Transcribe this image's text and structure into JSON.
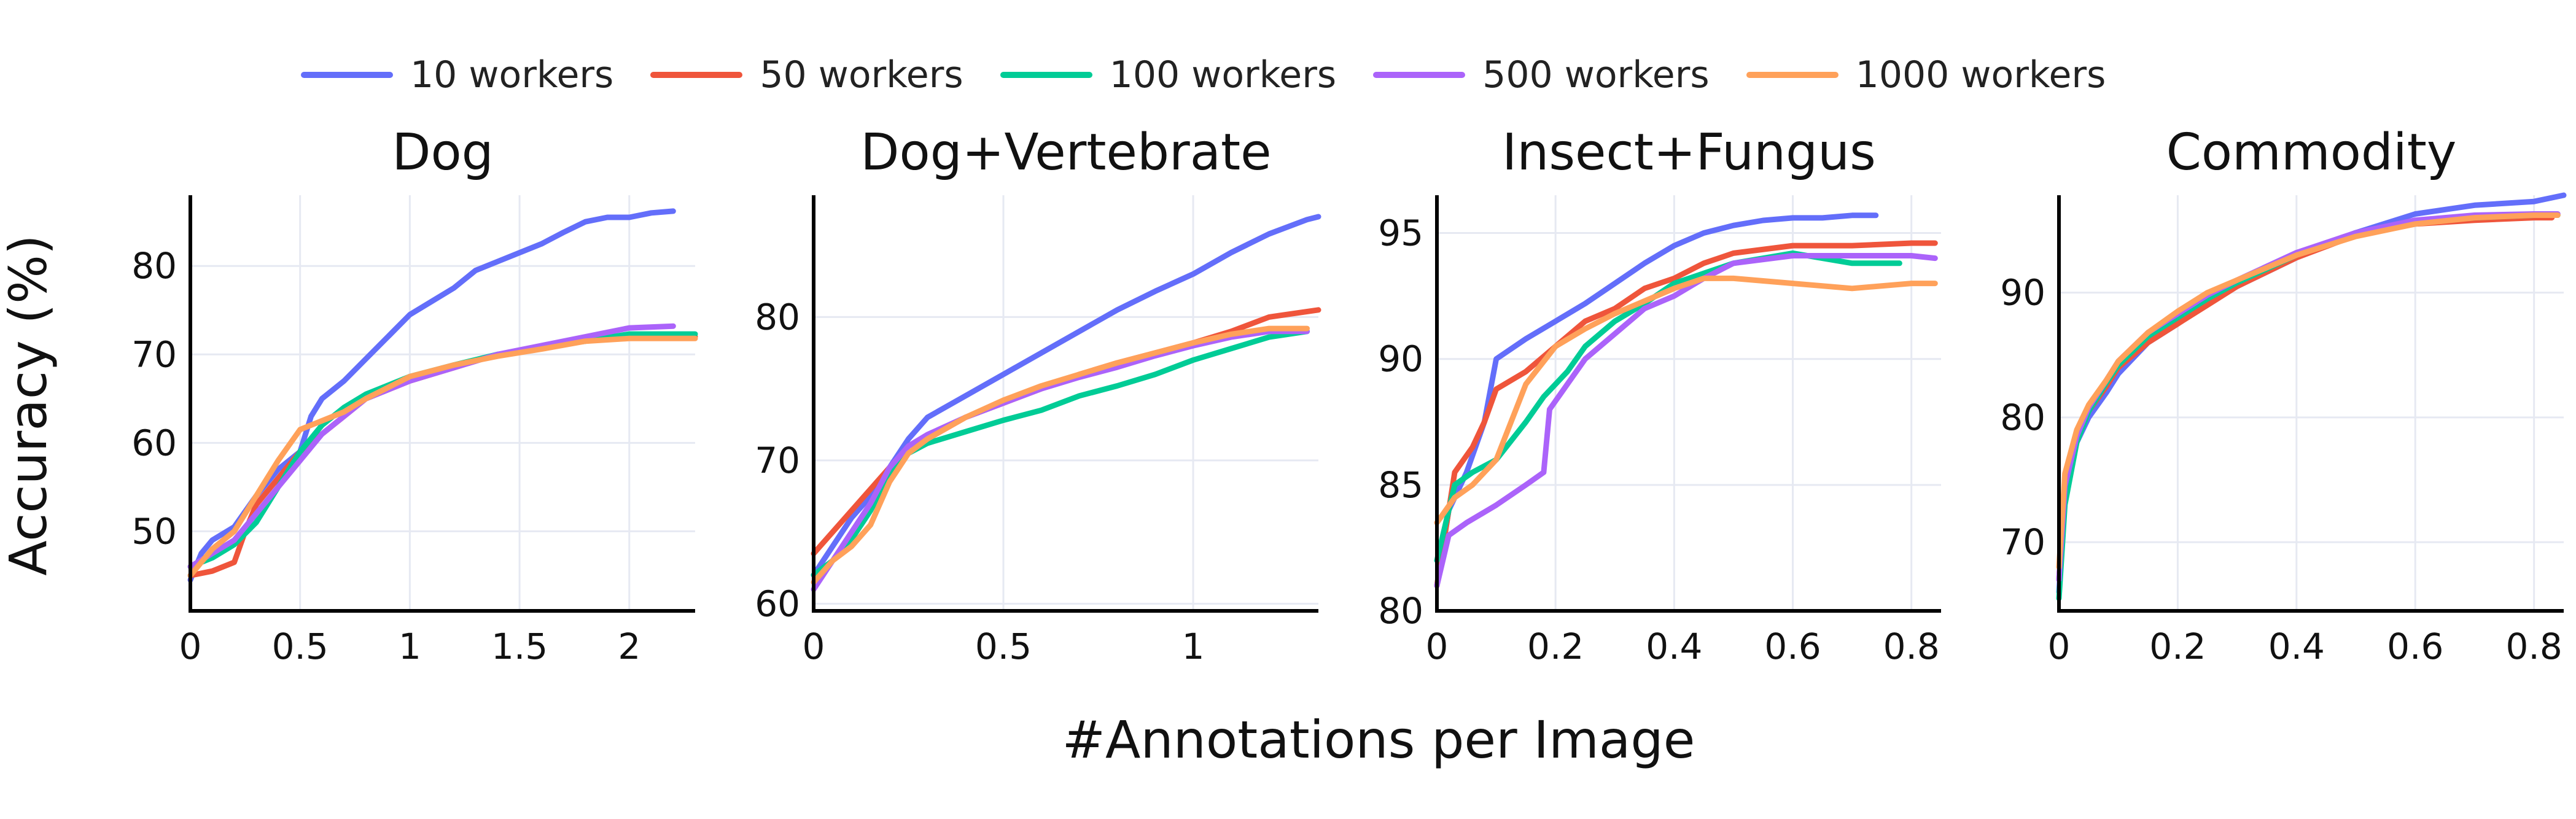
{
  "ylabel": "Accuracy (%)",
  "xlabel": "#Annotations per Image",
  "legend": [
    {
      "name": "10 workers",
      "color": "#636efa"
    },
    {
      "name": "50 workers",
      "color": "#ef553b"
    },
    {
      "name": "100 workers",
      "color": "#00cc96"
    },
    {
      "name": "500 workers",
      "color": "#ab63fa"
    },
    {
      "name": "1000 workers",
      "color": "#ffa15a"
    }
  ],
  "chart_data": [
    {
      "type": "line",
      "title": "Dog",
      "xlim": [
        0,
        2.3
      ],
      "ylim": [
        41,
        88
      ],
      "xticks": [
        0,
        0.5,
        1,
        1.5,
        2
      ],
      "xtick_labels": [
        "0",
        "0.5",
        "1",
        "1.5",
        "2"
      ],
      "yticks": [
        50,
        60,
        70,
        80
      ],
      "ytick_labels": [
        "50",
        "60",
        "70",
        "80"
      ],
      "grid": true,
      "series": [
        {
          "name": "10 workers",
          "x": [
            0,
            0.05,
            0.1,
            0.2,
            0.3,
            0.4,
            0.5,
            0.55,
            0.6,
            0.7,
            0.8,
            0.9,
            1.0,
            1.1,
            1.2,
            1.3,
            1.4,
            1.5,
            1.6,
            1.7,
            1.8,
            1.9,
            2.0,
            2.1,
            2.2
          ],
          "y": [
            44.5,
            47.5,
            49,
            50.5,
            54,
            57,
            59,
            63,
            65,
            67,
            69.5,
            72,
            74.5,
            76,
            77.5,
            79.5,
            80.5,
            81.5,
            82.5,
            83.8,
            85,
            85.5,
            85.5,
            86,
            86.2
          ]
        },
        {
          "name": "50 workers",
          "x": [
            0,
            0.1,
            0.2,
            0.25,
            0.3,
            0.4,
            0.5,
            0.6,
            0.7,
            0.8,
            1.0,
            1.2,
            1.4,
            1.6,
            1.8,
            2.0,
            2.3
          ],
          "y": [
            45,
            45.5,
            46.5,
            50,
            53,
            56,
            59,
            61,
            63,
            65,
            67,
            68.5,
            70,
            70.8,
            71.5,
            72,
            72
          ]
        },
        {
          "name": "100 workers",
          "x": [
            0,
            0.1,
            0.2,
            0.3,
            0.4,
            0.5,
            0.6,
            0.7,
            0.8,
            1.0,
            1.2,
            1.4,
            1.6,
            1.8,
            2.0,
            2.3
          ],
          "y": [
            46,
            47,
            48.5,
            51,
            55,
            59,
            62,
            64,
            65.5,
            67.5,
            68.8,
            70,
            70.8,
            71.5,
            72.3,
            72.3
          ]
        },
        {
          "name": "500 workers",
          "x": [
            0,
            0.1,
            0.2,
            0.3,
            0.4,
            0.5,
            0.6,
            0.7,
            0.8,
            1.0,
            1.2,
            1.4,
            1.6,
            1.8,
            2.0,
            2.2
          ],
          "y": [
            46,
            47.5,
            49,
            52,
            55,
            58,
            61,
            63,
            65,
            67,
            68.5,
            70,
            71,
            72,
            73,
            73.2
          ]
        },
        {
          "name": "1000 workers",
          "x": [
            0,
            0.1,
            0.2,
            0.3,
            0.35,
            0.4,
            0.5,
            0.6,
            0.7,
            0.8,
            1.0,
            1.2,
            1.4,
            1.6,
            1.8,
            2.0,
            2.3
          ],
          "y": [
            45,
            48,
            50,
            54,
            56,
            58,
            61.5,
            62.5,
            63.5,
            65,
            67.5,
            68.8,
            69.8,
            70.6,
            71.5,
            71.8,
            71.8
          ]
        }
      ]
    },
    {
      "type": "line",
      "title": "Dog+Vertebrate",
      "xlim": [
        0,
        1.33
      ],
      "ylim": [
        59.5,
        88.5
      ],
      "xticks": [
        0,
        0.5,
        1
      ],
      "xtick_labels": [
        "0",
        "0.5",
        "1"
      ],
      "yticks": [
        60,
        70,
        80
      ],
      "ytick_labels": [
        "60",
        "70",
        "80"
      ],
      "grid": true,
      "series": [
        {
          "name": "10 workers",
          "x": [
            0,
            0.05,
            0.1,
            0.15,
            0.2,
            0.25,
            0.3,
            0.4,
            0.5,
            0.6,
            0.7,
            0.8,
            0.9,
            1.0,
            1.1,
            1.2,
            1.3,
            1.33
          ],
          "y": [
            62,
            64,
            66,
            67.5,
            69.5,
            71.5,
            73,
            74.5,
            76,
            77.5,
            79,
            80.5,
            81.8,
            83,
            84.5,
            85.8,
            86.8,
            87
          ]
        },
        {
          "name": "50 workers",
          "x": [
            0,
            0.05,
            0.1,
            0.15,
            0.2,
            0.25,
            0.3,
            0.4,
            0.5,
            0.6,
            0.7,
            0.8,
            0.9,
            1.0,
            1.1,
            1.2,
            1.33
          ],
          "y": [
            63.5,
            65,
            66.5,
            68,
            69.5,
            70.5,
            71.5,
            73,
            74,
            75,
            76,
            76.8,
            77.5,
            78.2,
            79,
            80,
            80.5
          ]
        },
        {
          "name": "100 workers",
          "x": [
            0,
            0.05,
            0.1,
            0.15,
            0.2,
            0.25,
            0.3,
            0.4,
            0.5,
            0.6,
            0.7,
            0.8,
            0.9,
            1.0,
            1.1,
            1.2,
            1.3
          ],
          "y": [
            62,
            63,
            64.5,
            66.5,
            69,
            70.5,
            71.2,
            72,
            72.8,
            73.5,
            74.5,
            75.2,
            76,
            77,
            77.8,
            78.6,
            79
          ]
        },
        {
          "name": "500 workers",
          "x": [
            0,
            0.05,
            0.1,
            0.15,
            0.2,
            0.25,
            0.3,
            0.4,
            0.5,
            0.6,
            0.7,
            0.8,
            0.9,
            1.0,
            1.1,
            1.2,
            1.3
          ],
          "y": [
            61,
            63,
            65,
            67,
            69.5,
            71,
            71.8,
            73,
            74,
            75,
            75.8,
            76.5,
            77.3,
            78,
            78.6,
            79,
            79
          ]
        },
        {
          "name": "1000 workers",
          "x": [
            0,
            0.05,
            0.1,
            0.15,
            0.2,
            0.25,
            0.3,
            0.4,
            0.5,
            0.6,
            0.7,
            0.8,
            0.9,
            1.0,
            1.1,
            1.2,
            1.3
          ],
          "y": [
            61.5,
            63,
            64,
            65.5,
            68.5,
            70.5,
            71.5,
            73,
            74.2,
            75.2,
            76,
            76.8,
            77.5,
            78.2,
            78.8,
            79.2,
            79.2
          ]
        }
      ]
    },
    {
      "type": "line",
      "title": "Insect+Fungus",
      "xlim": [
        0,
        0.85
      ],
      "ylim": [
        80,
        96.5
      ],
      "xticks": [
        0,
        0.2,
        0.4,
        0.6,
        0.8
      ],
      "xtick_labels": [
        "0",
        "0.2",
        "0.4",
        "0.6",
        "0.8"
      ],
      "yticks": [
        80,
        85,
        90,
        95
      ],
      "ytick_labels": [
        "80",
        "85",
        "90",
        "95"
      ],
      "grid": true,
      "series": [
        {
          "name": "10 workers",
          "x": [
            0,
            0.02,
            0.05,
            0.08,
            0.1,
            0.15,
            0.2,
            0.25,
            0.3,
            0.35,
            0.4,
            0.45,
            0.5,
            0.55,
            0.6,
            0.65,
            0.7,
            0.74
          ],
          "y": [
            81,
            84,
            85.5,
            87.5,
            90,
            90.8,
            91.5,
            92.2,
            93,
            93.8,
            94.5,
            95,
            95.3,
            95.5,
            95.6,
            95.6,
            95.7,
            95.7
          ]
        },
        {
          "name": "50 workers",
          "x": [
            0,
            0.03,
            0.06,
            0.08,
            0.1,
            0.15,
            0.2,
            0.25,
            0.3,
            0.35,
            0.4,
            0.45,
            0.5,
            0.6,
            0.7,
            0.8,
            0.84
          ],
          "y": [
            81,
            85.5,
            86.5,
            87.5,
            88.8,
            89.5,
            90.5,
            91.5,
            92,
            92.8,
            93.2,
            93.8,
            94.2,
            94.5,
            94.5,
            94.6,
            94.6
          ]
        },
        {
          "name": "100 workers",
          "x": [
            0,
            0.03,
            0.06,
            0.1,
            0.15,
            0.18,
            0.22,
            0.25,
            0.3,
            0.35,
            0.4,
            0.5,
            0.6,
            0.7,
            0.78
          ],
          "y": [
            82,
            85,
            85.5,
            86,
            87.5,
            88.5,
            89.5,
            90.5,
            91.5,
            92.2,
            93,
            93.8,
            94.2,
            93.8,
            93.8
          ]
        },
        {
          "name": "500 workers",
          "x": [
            0,
            0.02,
            0.05,
            0.1,
            0.15,
            0.18,
            0.19,
            0.22,
            0.25,
            0.3,
            0.35,
            0.4,
            0.45,
            0.5,
            0.6,
            0.7,
            0.8,
            0.84
          ],
          "y": [
            81,
            83,
            83.5,
            84.2,
            85,
            85.5,
            88,
            89,
            90,
            91,
            92,
            92.5,
            93.2,
            93.8,
            94.1,
            94.1,
            94.1,
            94
          ]
        },
        {
          "name": "1000 workers",
          "x": [
            0,
            0.03,
            0.06,
            0.1,
            0.15,
            0.2,
            0.25,
            0.3,
            0.35,
            0.4,
            0.45,
            0.5,
            0.6,
            0.7,
            0.8,
            0.84
          ],
          "y": [
            83.5,
            84.5,
            85,
            86,
            89,
            90.5,
            91.2,
            91.8,
            92.3,
            92.8,
            93.2,
            93.2,
            93,
            92.8,
            93,
            93
          ]
        }
      ]
    },
    {
      "type": "line",
      "title": "Commodity",
      "xlim": [
        0,
        0.85
      ],
      "ylim": [
        64.5,
        97.8
      ],
      "xticks": [
        0,
        0.2,
        0.4,
        0.6,
        0.8
      ],
      "xtick_labels": [
        "0",
        "0.2",
        "0.4",
        "0.6",
        "0.8"
      ],
      "yticks": [
        70,
        80,
        90
      ],
      "ytick_labels": [
        "70",
        "80",
        "90"
      ],
      "grid": true,
      "series": [
        {
          "name": "10 workers",
          "x": [
            0,
            0.01,
            0.03,
            0.05,
            0.08,
            0.1,
            0.15,
            0.2,
            0.25,
            0.3,
            0.4,
            0.5,
            0.6,
            0.7,
            0.8,
            0.85
          ],
          "y": [
            66,
            74,
            78,
            80,
            82,
            83.5,
            86,
            87.5,
            89.3,
            90.5,
            92.8,
            94.8,
            96.3,
            97,
            97.3,
            97.8
          ]
        },
        {
          "name": "50 workers",
          "x": [
            0,
            0.01,
            0.03,
            0.05,
            0.08,
            0.1,
            0.15,
            0.2,
            0.25,
            0.3,
            0.4,
            0.5,
            0.6,
            0.7,
            0.8,
            0.83
          ],
          "y": [
            67,
            75,
            78.5,
            80.5,
            82.5,
            84,
            86,
            87.5,
            89,
            90.5,
            92.8,
            94.6,
            95.5,
            95.8,
            96,
            96
          ]
        },
        {
          "name": "100 workers",
          "x": [
            0,
            0.01,
            0.03,
            0.05,
            0.08,
            0.1,
            0.15,
            0.2,
            0.25,
            0.3,
            0.4,
            0.5,
            0.6,
            0.7,
            0.8,
            0.84
          ],
          "y": [
            65.5,
            73,
            78,
            80.5,
            82.8,
            84.2,
            86.5,
            88,
            89.5,
            90.8,
            93,
            94.8,
            95.6,
            96,
            96.2,
            96.2
          ]
        },
        {
          "name": "500 workers",
          "x": [
            0,
            0.01,
            0.03,
            0.05,
            0.08,
            0.1,
            0.15,
            0.2,
            0.25,
            0.3,
            0.4,
            0.5,
            0.6,
            0.7,
            0.8,
            0.84
          ],
          "y": [
            67,
            74.5,
            78.5,
            80.8,
            83,
            84.5,
            86.8,
            88.3,
            89.8,
            91,
            93.2,
            94.8,
            95.8,
            96.2,
            96.3,
            96.3
          ]
        },
        {
          "name": "1000 workers",
          "x": [
            0,
            0.01,
            0.03,
            0.05,
            0.08,
            0.1,
            0.15,
            0.2,
            0.25,
            0.3,
            0.4,
            0.5,
            0.6,
            0.7,
            0.8,
            0.84
          ],
          "y": [
            68,
            75.5,
            79,
            81,
            83,
            84.5,
            86.8,
            88.5,
            90,
            91,
            93,
            94.5,
            95.5,
            96,
            96.2,
            96.2
          ]
        }
      ]
    }
  ]
}
